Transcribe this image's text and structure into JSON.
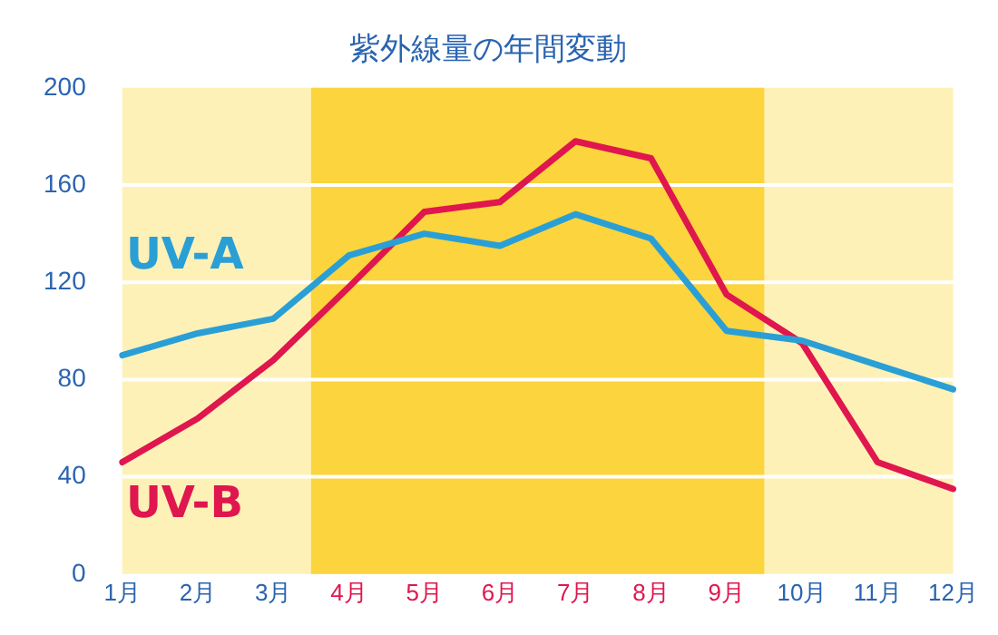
{
  "chart_data": {
    "type": "line",
    "title": "紫外線量の年間変動",
    "categories": [
      "1月",
      "2月",
      "3月",
      "4月",
      "5月",
      "6月",
      "7月",
      "8月",
      "9月",
      "10月",
      "11月",
      "12月"
    ],
    "series": [
      {
        "name": "UV-A",
        "color": "#2a9fd6",
        "values": [
          90,
          99,
          105,
          131,
          140,
          135,
          148,
          138,
          100,
          96,
          86,
          76
        ]
      },
      {
        "name": "UV-B",
        "color": "#e0164e",
        "values": [
          46,
          64,
          88,
          118,
          149,
          153,
          178,
          171,
          115,
          95,
          46,
          35
        ]
      }
    ],
    "ylim": [
      0,
      200
    ],
    "yticks": [
      0,
      40,
      80,
      120,
      160,
      200
    ],
    "grid": "y",
    "legend": false,
    "marker": "none",
    "line_style": "solid",
    "bands": [
      {
        "axis": "y",
        "from": 0,
        "to": 200,
        "color": "#fdf1b8"
      },
      {
        "axis": "x",
        "from": "4月",
        "to": "9月",
        "color": "#fbd43e"
      }
    ]
  }
}
